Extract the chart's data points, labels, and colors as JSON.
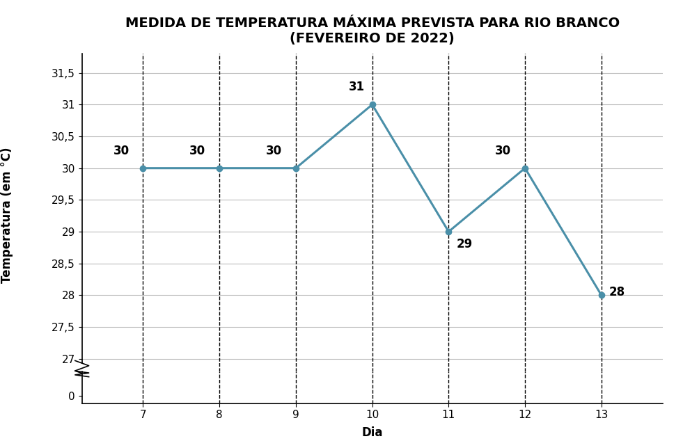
{
  "title": "MEDIDA DE TEMPERATURA MÁXIMA PREVISTA PARA RIO BRANCO\n(FEVEREIRO DE 2022)",
  "xlabel": "Dia",
  "ylabel": "Temperatura (em °C)",
  "days": [
    7,
    8,
    9,
    10,
    11,
    12,
    13
  ],
  "temps": [
    30,
    30,
    30,
    31,
    29,
    30,
    28
  ],
  "line_color": "#4a8fa8",
  "marker_color": "#4a8fa8",
  "ylim_top_upper": 31.8,
  "ylim_bottom_upper": 26.8,
  "ylim_top_lower": 1.0,
  "ylim_bottom_lower": -0.3,
  "yticks_upper": [
    27,
    27.5,
    28,
    28.5,
    29,
    29.5,
    30,
    30.5,
    31,
    31.5
  ],
  "ytick_labels_upper": [
    "27",
    "27,5",
    "28",
    "28,5",
    "29",
    "29,5",
    "30",
    "30,5",
    "31",
    "31,5"
  ],
  "yticks_lower": [
    0
  ],
  "ytick_labels_lower": [
    "0"
  ],
  "background_color": "#ffffff",
  "grid_color": "#bbbbbb",
  "title_fontsize": 14,
  "axis_label_fontsize": 12,
  "tick_fontsize": 11,
  "annotation_fontsize": 12,
  "line_width": 2.2,
  "marker_size": 6,
  "xlim_left": 6.2,
  "xlim_right": 13.8,
  "upper_height_ratio": 10,
  "lower_height_ratio": 1
}
